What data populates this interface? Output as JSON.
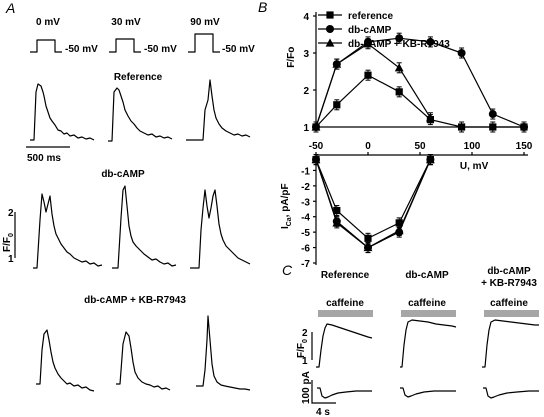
{
  "panels": {
    "a": "A",
    "b": "B",
    "c": "C"
  },
  "panel_a": {
    "voltages": [
      "0 mV",
      "30 mV",
      "90 mV"
    ],
    "holding": [
      "-50 mV",
      "-50 mV",
      "-50 mV"
    ],
    "conditions": [
      "Reference",
      "db-cAMP",
      "db-cAMP + KB-R7943"
    ],
    "timebar": "500 ms",
    "ylabel": "F/F",
    "ylabel_sub": "0",
    "yticks": [
      "2",
      "1"
    ]
  },
  "panel_c": {
    "conditions": [
      "Reference",
      "db-cAMP",
      "db-cAMP",
      "+ KB-R7943"
    ],
    "caffeine": [
      "caffeine",
      "caffeine",
      "caffeine"
    ],
    "fscale": "F/F",
    "fscale_sub": "0",
    "fticks": [
      "2",
      "1"
    ],
    "current_scale": "100 pA",
    "time_scale": "4 s"
  },
  "chart_data": [
    {
      "type": "line",
      "panel": "B (top)",
      "xlabel": "U, mV",
      "ylabel": "F/Fo",
      "xlim": [
        -50,
        150
      ],
      "ylim": [
        1,
        4
      ],
      "xticks": [
        -50,
        0,
        50,
        100,
        150
      ],
      "yticks": [
        1,
        2,
        3,
        4
      ],
      "legend": "top",
      "series": [
        {
          "name": "reference",
          "marker": "square",
          "x": [
            -50,
            -30,
            0,
            30,
            60,
            90,
            120,
            150
          ],
          "y": [
            1.0,
            1.6,
            2.4,
            1.95,
            1.2,
            1.0,
            1.0,
            1.0
          ]
        },
        {
          "name": "db-cAMP",
          "marker": "circle",
          "x": [
            -50,
            -30,
            0,
            30,
            60,
            90,
            120,
            150
          ],
          "y": [
            1.0,
            2.7,
            3.3,
            3.4,
            3.3,
            3.0,
            1.35,
            1.0
          ]
        },
        {
          "name": "db-cAMP + KB-R7943",
          "marker": "triangle",
          "x": [
            -50,
            -30,
            0,
            30,
            60
          ],
          "y": [
            1.0,
            2.7,
            3.25,
            2.6,
            1.25
          ]
        }
      ]
    },
    {
      "type": "line",
      "panel": "B (bottom)",
      "ylabel": "I",
      "ylabel_sub": "Ca",
      "ylabel_unit": ", pA/pF",
      "xlim": [
        -50,
        150
      ],
      "ylim": [
        -7,
        0
      ],
      "yticks": [
        -1,
        -2,
        -3,
        -4,
        -5,
        -6,
        -7
      ],
      "series": [
        {
          "name": "reference",
          "marker": "square",
          "x": [
            -50,
            -30,
            0,
            30,
            60
          ],
          "y": [
            -0.3,
            -3.6,
            -5.4,
            -4.4,
            -0.3
          ]
        },
        {
          "name": "db-cAMP",
          "marker": "circle",
          "x": [
            -50,
            -30,
            0,
            30,
            60
          ],
          "y": [
            -0.3,
            -4.3,
            -6.0,
            -5.0,
            -0.3
          ]
        },
        {
          "name": "db-cAMP + KB-R7943",
          "marker": "triangle",
          "x": [
            -50,
            -30,
            0,
            30,
            60
          ],
          "y": [
            -0.3,
            -4.4,
            -6.0,
            -4.9,
            -0.3
          ]
        }
      ]
    }
  ]
}
